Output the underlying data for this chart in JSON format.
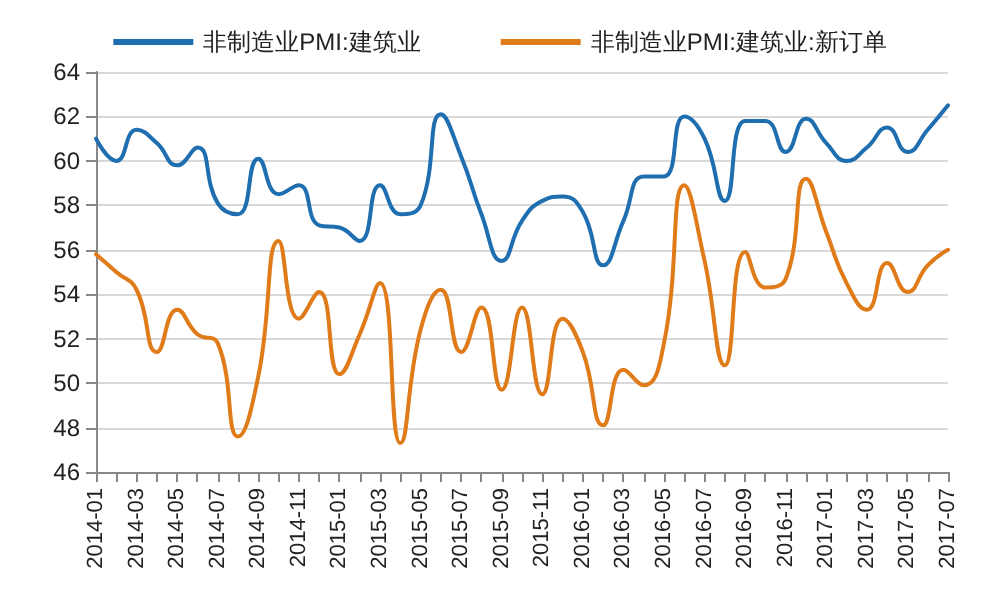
{
  "chart_data": {
    "type": "line",
    "categories": [
      "2014-01",
      null,
      "2014-03",
      null,
      "2014-05",
      null,
      "2014-07",
      null,
      "2014-09",
      null,
      "2014-11",
      null,
      "2015-01",
      null,
      "2015-03",
      null,
      "2015-05",
      null,
      "2015-07",
      null,
      "2015-09",
      null,
      "2015-11",
      null,
      "2016-01",
      null,
      "2016-03",
      null,
      "2016-05",
      null,
      "2016-07",
      null,
      "2016-09",
      null,
      "2016-11",
      null,
      "2017-01",
      null,
      "2017-03",
      null,
      "2017-05",
      null,
      "2017-07"
    ],
    "series": [
      {
        "name": "非制造业PMI:建筑业",
        "color": "#1f6fb0",
        "values": [
          61.0,
          60.0,
          61.4,
          60.8,
          59.8,
          60.6,
          58.1,
          57.6,
          60.1,
          58.5,
          58.9,
          57.1,
          57.0,
          56.4,
          58.9,
          57.6,
          58.0,
          62.1,
          60.2,
          57.6,
          55.5,
          57.3,
          58.2,
          58.4,
          57.7,
          55.3,
          57.3,
          59.3,
          59.3,
          62.0,
          61.0,
          58.2,
          61.8,
          61.8,
          60.4,
          61.9,
          60.8,
          60.0,
          60.6,
          61.5,
          60.4,
          61.4,
          62.5
        ]
      },
      {
        "name": "非制造业PMI:建筑业:新订单",
        "color": "#e07b1a",
        "values": [
          55.8,
          55.0,
          54.2,
          51.4,
          53.3,
          52.2,
          51.8,
          47.6,
          50.3,
          56.4,
          52.9,
          54.1,
          50.4,
          52.2,
          54.5,
          47.3,
          52.4,
          54.2,
          51.4,
          53.4,
          49.7,
          53.4,
          49.5,
          52.9,
          51.4,
          48.1,
          50.6,
          49.9,
          51.8,
          58.9,
          55.5,
          50.8,
          55.9,
          54.3,
          54.7,
          59.2,
          56.8,
          54.5,
          53.3,
          55.4,
          54.1,
          55.3,
          56.0
        ]
      }
    ],
    "ylim": [
      46,
      64
    ],
    "yticks": [
      46,
      48,
      50,
      52,
      54,
      56,
      58,
      60,
      62,
      64
    ],
    "grid": "y",
    "legend": "top",
    "marker": "none",
    "line_style": "solid"
  }
}
